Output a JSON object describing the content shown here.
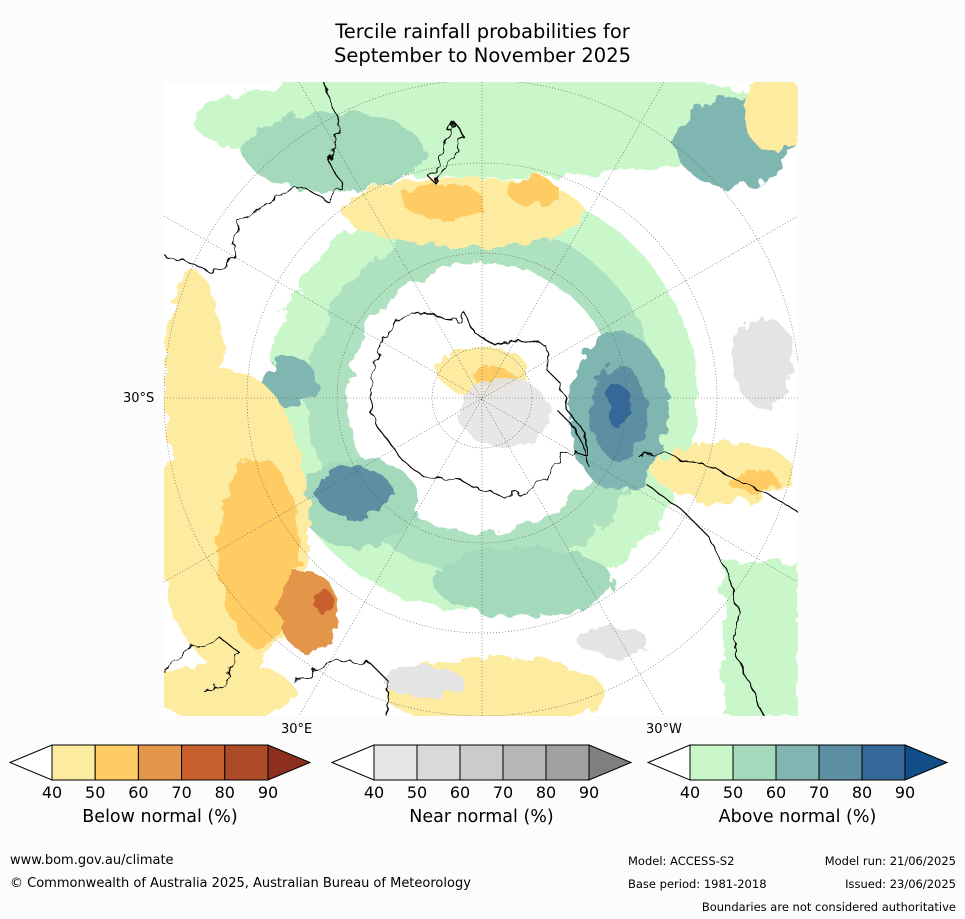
{
  "title_line1": "Tercile rainfall probabilities for",
  "title_line2": "September to November 2025",
  "map": {
    "projection": "south-polar-stereographic",
    "lat_labels": {
      "west": "30°S",
      "bottom_left": "30°E",
      "bottom_right": "30°W"
    },
    "region_colors": {
      "below_40": "#fdeba0",
      "below_50": "#fecc64",
      "below_60": "#e39649",
      "below_70": "#c8612f",
      "near_40": "#e4e4e4",
      "near_50": "#d4d4d4",
      "above_40": "#c9f7c9",
      "above_50": "#a4d9bc",
      "above_60": "#7fb6b1",
      "above_70": "#5b8fa1",
      "above_80": "#346898"
    }
  },
  "colorbars": [
    {
      "name": "below",
      "label": "Below normal (%)",
      "ticks": [
        "40",
        "50",
        "60",
        "70",
        "80",
        "90"
      ],
      "colors": [
        "#ffffff",
        "#fdeba0",
        "#fecc64",
        "#e39649",
        "#c8612f",
        "#ad4b29",
        "#8d2e1e"
      ]
    },
    {
      "name": "near",
      "label": "Near normal (%)",
      "ticks": [
        "40",
        "50",
        "60",
        "70",
        "80",
        "90"
      ],
      "colors": [
        "#ffffff",
        "#e6e6e6",
        "#d9d9d9",
        "#cbcbcb",
        "#b7b7b7",
        "#a1a1a1",
        "#7f7f7f"
      ]
    },
    {
      "name": "above",
      "label": "Above normal (%)",
      "ticks": [
        "40",
        "50",
        "60",
        "70",
        "80",
        "90"
      ],
      "colors": [
        "#ffffff",
        "#c9f7c9",
        "#a4d9bc",
        "#7fb6b1",
        "#5b8fa1",
        "#346898",
        "#124e8a"
      ]
    }
  ],
  "footer": {
    "website": "www.bom.gov.au/climate",
    "copyright": "© Commonwealth of Australia 2025, Australian Bureau of Meteorology",
    "model": "Model: ACCESS-S2",
    "model_run": "Model run: 21/06/2025",
    "base_period": "Base period: 1981-2018",
    "issued": "Issued: 23/06/2025",
    "disclaimer": "Boundaries are not considered authoritative"
  }
}
